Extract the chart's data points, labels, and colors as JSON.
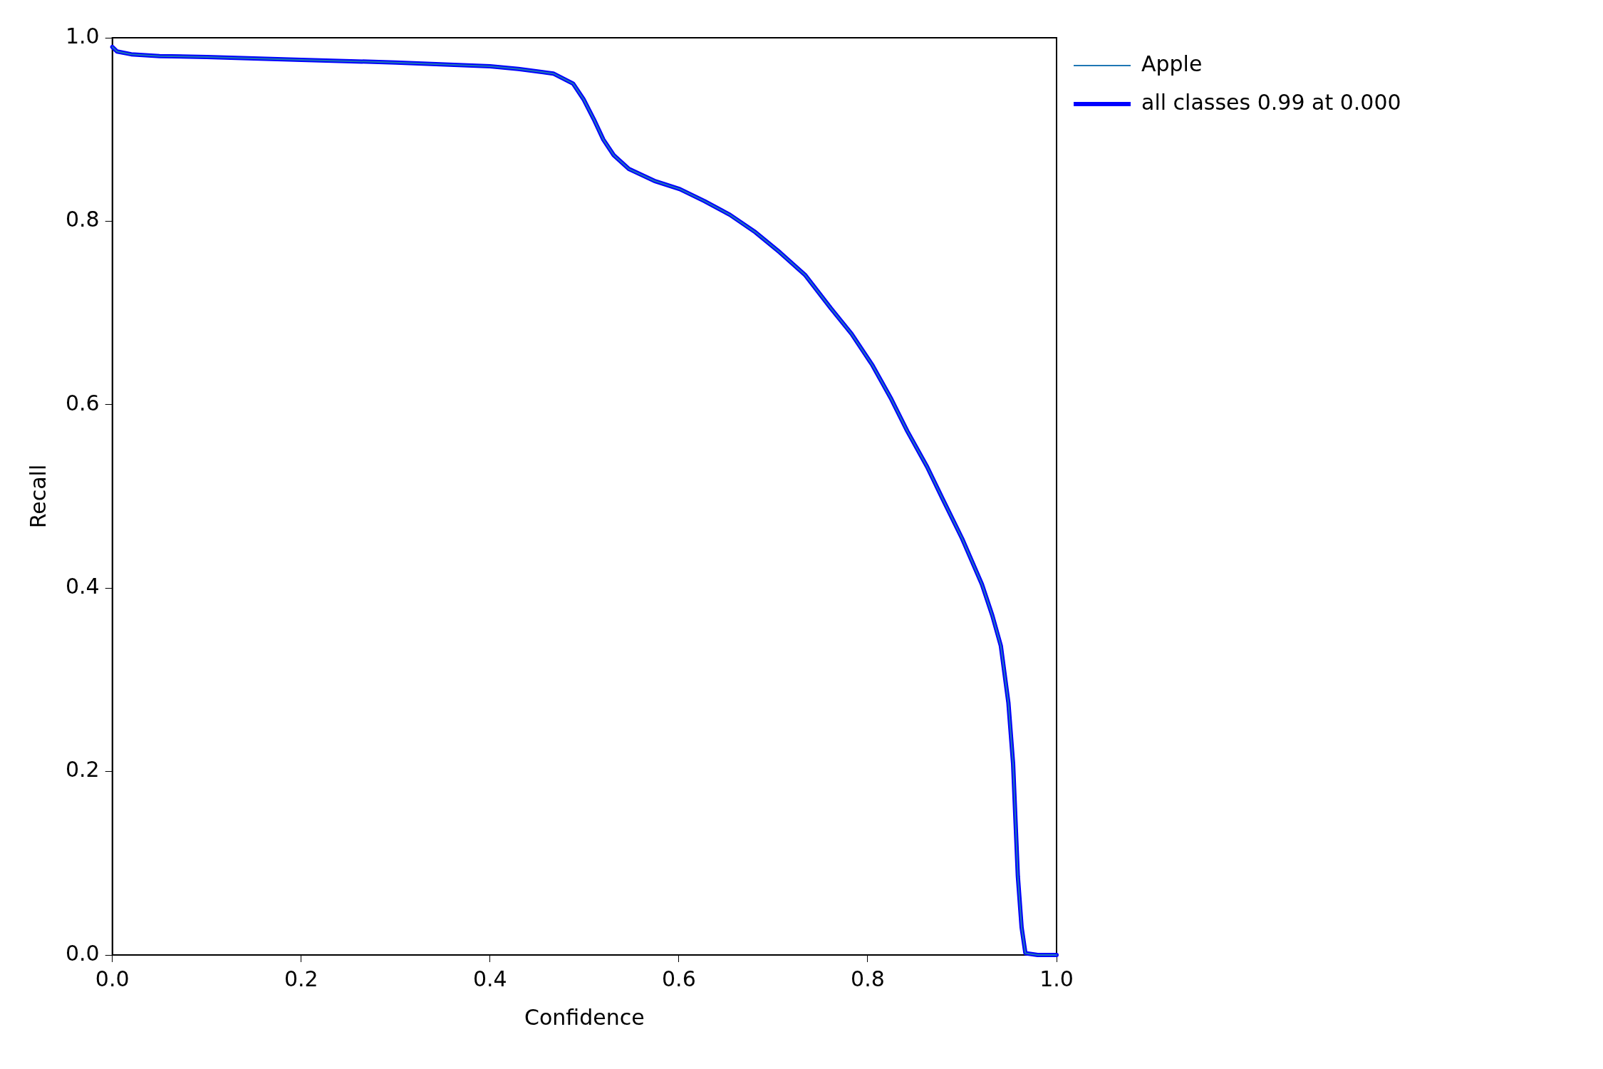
{
  "chart_data": {
    "type": "line",
    "xlabel": "Confidence",
    "ylabel": "Recall",
    "x": [
      0,
      0.005,
      0.02,
      0.05,
      0.1,
      0.2,
      0.3,
      0.4,
      0.43,
      0.467,
      0.488,
      0.499,
      0.51,
      0.52,
      0.531,
      0.547,
      0.574,
      0.601,
      0.627,
      0.654,
      0.681,
      0.707,
      0.734,
      0.761,
      0.783,
      0.805,
      0.825,
      0.842,
      0.863,
      0.879,
      0.9,
      0.921,
      0.932,
      0.941,
      0.949,
      0.954,
      0.959,
      0.963,
      0.967,
      0.98,
      1.0
    ],
    "series": [
      {
        "name": "Apple",
        "color": "#1f77b4",
        "values": [
          0.99,
          0.985,
          0.982,
          0.98,
          0.979,
          0.976,
          0.973,
          0.969,
          0.966,
          0.961,
          0.95,
          0.933,
          0.911,
          0.889,
          0.872,
          0.857,
          0.844,
          0.835,
          0.822,
          0.807,
          0.788,
          0.766,
          0.741,
          0.705,
          0.677,
          0.643,
          0.606,
          0.571,
          0.532,
          0.498,
          0.454,
          0.404,
          0.37,
          0.337,
          0.275,
          0.208,
          0.086,
          0.03,
          0.002,
          0,
          0
        ]
      },
      {
        "name": "all classes 0.99 at 0.000",
        "color": "#0000ff",
        "values": [
          0.99,
          0.985,
          0.982,
          0.98,
          0.979,
          0.976,
          0.973,
          0.969,
          0.966,
          0.961,
          0.95,
          0.933,
          0.911,
          0.889,
          0.872,
          0.857,
          0.844,
          0.835,
          0.822,
          0.807,
          0.788,
          0.766,
          0.741,
          0.705,
          0.677,
          0.643,
          0.606,
          0.571,
          0.532,
          0.498,
          0.454,
          0.404,
          0.37,
          0.337,
          0.275,
          0.208,
          0.086,
          0.03,
          0.002,
          0,
          0
        ]
      }
    ],
    "xlim": [
      0,
      1
    ],
    "ylim": [
      0,
      1
    ],
    "xticks": [
      {
        "value": 0,
        "label": "0.0"
      },
      0.2,
      0.4,
      0.6,
      0.8,
      {
        "value": 1,
        "label": "1.0"
      }
    ],
    "yticks": [
      {
        "value": 0,
        "label": "0.0"
      },
      0.2,
      0.4,
      0.6,
      0.8,
      {
        "value": 1,
        "label": "1.0"
      }
    ],
    "grid": false,
    "legend": "top right",
    "marker": "none",
    "line_style": "solid"
  }
}
